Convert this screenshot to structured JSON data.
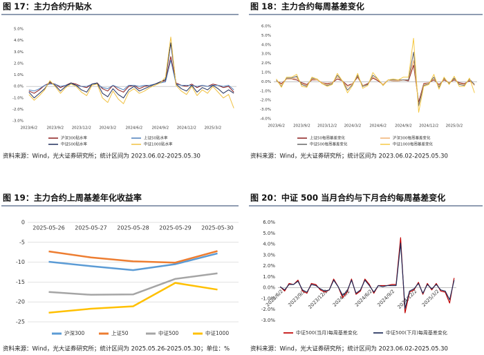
{
  "chart_data": [
    {
      "type": "line",
      "title": "图 17：主力合约升贴水",
      "source": "资料来源：Wind，光大证券研究所；统计区间为 2023.06.02-2025.05.30",
      "categories": [
        "2023/6/2",
        null,
        null,
        null,
        null,
        "2023/9/2",
        null,
        null,
        null,
        null,
        "2023/12/2",
        null,
        null,
        null,
        null,
        "2024/3/2",
        null,
        null,
        null,
        null,
        "2024/6/2",
        null,
        null,
        null,
        null,
        "2024/9/2",
        null,
        null,
        null,
        null,
        "2024/12/2",
        null,
        null,
        null,
        null,
        "2025/3/2",
        null,
        null,
        null,
        null
      ],
      "ylim": [
        -3,
        5
      ],
      "yticks": [
        {
          "value": -3,
          "label": "-3.0%"
        },
        {
          "value": -2,
          "label": "-2.0%"
        },
        {
          "value": -1,
          "label": "-1.0%"
        },
        {
          "value": 0,
          "label": "0.0%"
        },
        {
          "value": 1,
          "label": "1.0%"
        },
        {
          "value": 2,
          "label": "2.0%"
        },
        {
          "value": 3,
          "label": "3.0%"
        },
        {
          "value": 4,
          "label": "4.0%"
        },
        {
          "value": 5,
          "label": "5.0%"
        }
      ],
      "grid": false,
      "series": [
        {
          "name": "沪深300贴水率",
          "color": "#8b1a1a",
          "values": [
            -0.4,
            -0.6,
            -0.3,
            0.1,
            0.3,
            0.2,
            -0.1,
            0.1,
            0.3,
            0.2,
            0.0,
            -0.1,
            0.2,
            0.3,
            -0.2,
            -0.4,
            0.1,
            -0.3,
            -0.5,
            0.0,
            0.1,
            -0.2,
            0.0,
            0.1,
            0.2,
            0.4,
            0.5,
            2.6,
            0.3,
            0.1,
            0.0,
            0.2,
            -0.1,
            0.1,
            0.0,
            0.2,
            0.1,
            -0.1,
            0.0,
            -0.5
          ]
        },
        {
          "name": "上证50贴水率",
          "color": "#4a7ebb",
          "values": [
            -0.3,
            -0.4,
            -0.2,
            0.1,
            0.2,
            0.2,
            0.0,
            0.1,
            0.2,
            0.1,
            0.0,
            0.0,
            0.2,
            0.2,
            -0.1,
            -0.2,
            0.1,
            -0.1,
            -0.3,
            0.1,
            0.1,
            0.0,
            0.1,
            0.1,
            0.2,
            0.3,
            0.4,
            2.3,
            0.2,
            0.1,
            0.1,
            0.1,
            0.0,
            0.1,
            0.0,
            0.1,
            0.1,
            0.0,
            0.1,
            -0.3
          ]
        },
        {
          "name": "中证500贴水率",
          "color": "#1f2d5a",
          "values": [
            -0.5,
            -1.0,
            -0.6,
            -0.2,
            0.4,
            0.1,
            -0.4,
            0.0,
            0.3,
            0.1,
            -0.3,
            -0.5,
            0.2,
            0.3,
            -0.6,
            -0.9,
            -0.2,
            -0.7,
            -1.0,
            -0.3,
            0.0,
            -0.4,
            -0.2,
            0.0,
            0.2,
            0.4,
            0.6,
            3.8,
            0.2,
            -0.2,
            -0.4,
            0.1,
            -0.5,
            -0.1,
            -0.3,
            0.1,
            -0.2,
            -0.6,
            -0.3,
            -0.6
          ]
        },
        {
          "name": "中证1000贴水率",
          "color": "#f0c040",
          "values": [
            -0.7,
            -1.2,
            -0.8,
            -0.3,
            0.5,
            0.0,
            -0.6,
            -0.1,
            0.2,
            0.0,
            -0.5,
            -0.8,
            0.1,
            0.2,
            -1.0,
            -1.4,
            -0.4,
            -1.1,
            -1.5,
            -0.5,
            -0.2,
            -0.6,
            -0.4,
            -0.1,
            0.1,
            0.3,
            0.8,
            4.3,
            0.1,
            -0.4,
            -0.7,
            0.0,
            -0.8,
            -0.3,
            -0.6,
            0.0,
            -0.5,
            -1.0,
            -0.7,
            -1.9
          ]
        }
      ]
    },
    {
      "type": "line",
      "title": "图 18：主力合约每周基差变化",
      "source": "资料来源：Wind，光大证券研究所；统计区间为 2023.06.02-2025.05.30",
      "categories": [
        "2023/6/2",
        null,
        null,
        null,
        null,
        "2023/9/2",
        null,
        null,
        null,
        null,
        "2023/12/2",
        null,
        null,
        null,
        null,
        "2024/3/2",
        null,
        null,
        null,
        null,
        "2024/6/2",
        null,
        null,
        null,
        null,
        "2024/9/2",
        null,
        null,
        null,
        null,
        "2024/12/2",
        null,
        null,
        null,
        null,
        "2025/3/2",
        null,
        null,
        null,
        null
      ],
      "ylim": [
        -4,
        6
      ],
      "yticks": [
        {
          "value": -4,
          "label": "-4.0%"
        },
        {
          "value": -3,
          "label": "-3.0%"
        },
        {
          "value": -2,
          "label": "-2.0%"
        },
        {
          "value": -1,
          "label": "-1.0%"
        },
        {
          "value": 0,
          "label": "0.0%"
        },
        {
          "value": 1,
          "label": "1.0%"
        },
        {
          "value": 2,
          "label": "2.0%"
        },
        {
          "value": 3,
          "label": "3.0%"
        },
        {
          "value": 4,
          "label": "4.0%"
        },
        {
          "value": 5,
          "label": "5.0%"
        },
        {
          "value": 6,
          "label": "6.0%"
        }
      ],
      "grid": false,
      "series": [
        {
          "name": "上证50每周基差变化",
          "color": "#8b1a1a",
          "values": [
            0.1,
            -0.2,
            0.3,
            0.3,
            0.2,
            -0.1,
            -0.3,
            0.2,
            0.2,
            -0.1,
            -0.2,
            -0.1,
            0.3,
            0.1,
            -0.4,
            -0.2,
            0.5,
            -0.4,
            -0.2,
            0.4,
            0.1,
            -0.3,
            0.2,
            0.1,
            0.1,
            0.2,
            0.1,
            1.8,
            -2.2,
            -0.2,
            -0.1,
            0.2,
            -0.3,
            0.2,
            -0.1,
            0.2,
            -0.1,
            -0.2,
            0.1,
            -0.3
          ]
        },
        {
          "name": "沪深300每周基差变化",
          "color": "#f0b070",
          "values": [
            0.1,
            -0.3,
            0.3,
            0.3,
            0.4,
            -0.2,
            -0.4,
            0.3,
            0.2,
            -0.1,
            -0.3,
            -0.1,
            0.5,
            0.1,
            -0.6,
            -0.2,
            0.6,
            -0.4,
            -0.3,
            0.5,
            0.2,
            -0.3,
            0.2,
            0.1,
            0.1,
            0.2,
            0.2,
            2.3,
            -2.5,
            -0.3,
            -0.1,
            0.3,
            -0.4,
            0.3,
            -0.1,
            0.3,
            -0.2,
            -0.3,
            0.2,
            -0.4
          ]
        },
        {
          "name": "中证500每周基差变化",
          "color": "#666666",
          "values": [
            0.2,
            -0.5,
            0.4,
            0.4,
            0.6,
            -0.3,
            -0.5,
            0.4,
            0.3,
            -0.2,
            -0.4,
            -0.2,
            0.7,
            0.1,
            -0.9,
            -0.3,
            0.7,
            -0.5,
            -0.3,
            0.7,
            0.3,
            -0.4,
            0.2,
            0.2,
            0.2,
            0.2,
            0.2,
            3.2,
            -2.6,
            -0.4,
            -0.2,
            0.5,
            -0.6,
            0.4,
            -0.2,
            0.4,
            -0.3,
            -0.4,
            0.3,
            -0.3
          ]
        },
        {
          "name": "中证1000每周基差变化",
          "color": "#f5c842",
          "values": [
            0.3,
            -0.6,
            0.5,
            0.5,
            0.8,
            -0.5,
            -0.6,
            0.5,
            0.3,
            -0.2,
            -0.5,
            -0.3,
            0.9,
            0.1,
            -1.2,
            -0.4,
            0.9,
            -0.7,
            -0.4,
            1.0,
            0.3,
            -0.4,
            0.2,
            0.3,
            0.2,
            0.5,
            0.5,
            4.7,
            -3.3,
            -0.5,
            -0.3,
            0.8,
            -0.8,
            0.5,
            -0.3,
            0.6,
            -0.5,
            -0.5,
            0.4,
            -1.2
          ]
        }
      ]
    },
    {
      "type": "line",
      "title": "图 19：主力合约上周基差年化收益率",
      "source": "资料来源：Wind，光大证券研究所；统计区间为 2025.05.26-2025.05.30；单位：%",
      "categories": [
        "2025-05-26",
        "2025-05-27",
        "2025-05-28",
        "2025-05-29",
        "2025-05-30"
      ],
      "ylim": [
        -25,
        0
      ],
      "yticks": [
        -25,
        -20,
        -15,
        -10,
        -5,
        0
      ],
      "grid": true,
      "x_axis_position": "top",
      "series": [
        {
          "name": "沪深300",
          "color": "#5b9bd5",
          "values": [
            -9.9,
            -11.0,
            -12.0,
            -10.5,
            -7.8
          ]
        },
        {
          "name": "上证50",
          "color": "#ed7d31",
          "values": [
            -7.3,
            -8.8,
            -9.8,
            -10.1,
            -7.2
          ]
        },
        {
          "name": "中证500",
          "color": "#a5a5a5",
          "values": [
            -17.5,
            -18.2,
            -18.1,
            -14.2,
            -12.8
          ]
        },
        {
          "name": "中证1000",
          "color": "#ffc000",
          "values": [
            -22.7,
            -21.7,
            -21.1,
            -15.2,
            -16.9
          ]
        }
      ]
    },
    {
      "type": "line",
      "title": "图 20：中证 500 当月合约与下月合约每周基差变化",
      "source": "资料来源：Wind，光大证券研究所；统计区间为 2023.06.02-2025.05.30",
      "categories": [
        "2023/6/2",
        null,
        null,
        null,
        null,
        "2023/9/2",
        null,
        null,
        null,
        null,
        "2023/12/2",
        null,
        null,
        null,
        null,
        "2024/3/2",
        null,
        null,
        null,
        null,
        "2024/6/2",
        null,
        null,
        null,
        null,
        "2024/9/2",
        null,
        null,
        null,
        null,
        "2024/12/2",
        null,
        null,
        null,
        null,
        "2025/3/2",
        null,
        null,
        null,
        null
      ],
      "ylim": [
        -3,
        6
      ],
      "yticks": [
        {
          "value": -3,
          "label": "-3.0%"
        },
        {
          "value": -2,
          "label": "-2.0%"
        },
        {
          "value": -1,
          "label": "-1.0%"
        },
        {
          "value": 0,
          "label": "0.0%"
        },
        {
          "value": 1,
          "label": "1.0%"
        },
        {
          "value": 2,
          "label": "2.0%"
        },
        {
          "value": 3,
          "label": "3.0%"
        },
        {
          "value": 4,
          "label": "4.0%"
        },
        {
          "value": 5,
          "label": "5.0%"
        },
        {
          "value": 6,
          "label": "6.0%"
        }
      ],
      "grid": false,
      "x_label_rotation": -45,
      "series": [
        {
          "name": "中证500(当月)每周基差变化",
          "color": "#c00000",
          "values": [
            0.1,
            -0.3,
            0.4,
            0.3,
            0.7,
            -0.3,
            -0.5,
            0.4,
            0.3,
            -0.2,
            -0.4,
            -0.2,
            0.8,
            0.1,
            -0.9,
            -0.4,
            0.8,
            -0.6,
            -0.3,
            0.8,
            0.3,
            -0.5,
            0.2,
            0.2,
            0.2,
            0.3,
            0.3,
            4.6,
            -2.3,
            -0.4,
            -0.2,
            0.5,
            -0.6,
            0.4,
            -0.2,
            0.4,
            -0.3,
            -0.4,
            -1.4,
            0.9
          ]
        },
        {
          "name": "中证500(下月)每周基差变化",
          "color": "#1f2d5a",
          "values": [
            0.1,
            -0.2,
            0.3,
            0.3,
            0.6,
            -0.2,
            -0.4,
            0.3,
            0.2,
            -0.1,
            -0.3,
            -0.2,
            0.7,
            0.1,
            -0.7,
            -0.3,
            0.7,
            -0.5,
            -0.2,
            0.7,
            0.2,
            -0.4,
            0.2,
            0.1,
            0.2,
            0.2,
            0.2,
            4.1,
            -1.9,
            -0.3,
            -0.1,
            0.4,
            -0.5,
            0.3,
            -0.1,
            0.3,
            -0.2,
            -0.3,
            -1.1,
            0.7
          ]
        }
      ]
    }
  ]
}
